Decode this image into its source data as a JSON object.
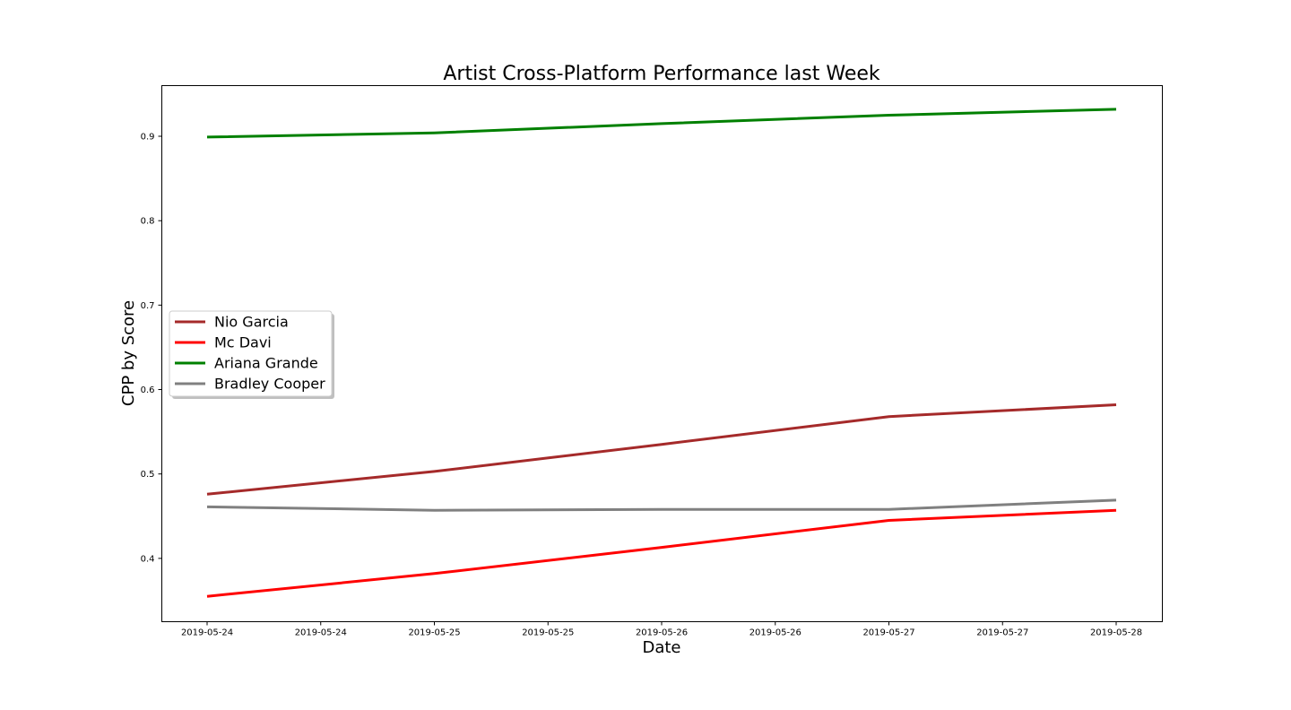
{
  "chart_data": {
    "type": "line",
    "title": "Artist Cross-Platform Performance last Week",
    "xlabel": "Date",
    "ylabel": "CPP by Score",
    "x": [
      "2019-05-24",
      "2019-05-25",
      "2019-05-26",
      "2019-05-27",
      "2019-05-28"
    ],
    "x_tick_labels": [
      "2019-05-24",
      "2019-05-24",
      "2019-05-25",
      "2019-05-25",
      "2019-05-26",
      "2019-05-26",
      "2019-05-27",
      "2019-05-27",
      "2019-05-28"
    ],
    "yticks": [
      0.4,
      0.5,
      0.6,
      0.7,
      0.8,
      0.9
    ],
    "ylim": [
      0.325,
      0.96
    ],
    "grid": false,
    "legend_position": "center-left",
    "series": [
      {
        "name": "Nio Garcia",
        "color": "#a52a2a",
        "values": [
          0.476,
          0.503,
          0.535,
          0.568,
          0.582
        ]
      },
      {
        "name": "Mc Davi",
        "color": "#ff0000",
        "values": [
          0.355,
          0.382,
          0.413,
          0.445,
          0.457
        ]
      },
      {
        "name": "Ariana Grande",
        "color": "#008000",
        "values": [
          0.899,
          0.904,
          0.915,
          0.925,
          0.932
        ]
      },
      {
        "name": "Bradley Cooper",
        "color": "#808080",
        "values": [
          0.461,
          0.457,
          0.458,
          0.458,
          0.469
        ]
      }
    ]
  }
}
